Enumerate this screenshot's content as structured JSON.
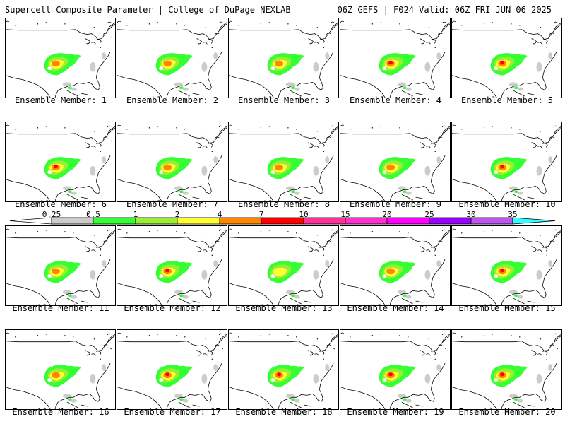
{
  "header": {
    "title": "Supercell Composite Parameter | College of DuPage NEXLAB",
    "valid": "06Z GEFS | F024 Valid: 06Z FRI JUN 06 2025"
  },
  "legend": {
    "ticks": [
      "0.25",
      "0.5",
      "1",
      "2",
      "4",
      "7",
      "10",
      "15",
      "20",
      "25",
      "30",
      "35"
    ],
    "colors": [
      "#cccccc",
      "#33ff33",
      "#99ee33",
      "#ffff33",
      "#ff8800",
      "#ff0000",
      "#ff3399",
      "#ff33cc",
      "#ff00ff",
      "#9900ff",
      "#bb55ee",
      "#33ffff"
    ]
  },
  "panels": [
    {
      "label": "Ensemble Member: 1",
      "max": 4
    },
    {
      "label": "Ensemble Member: 2",
      "max": 4
    },
    {
      "label": "Ensemble Member: 3",
      "max": 4
    },
    {
      "label": "Ensemble Member: 4",
      "max": 7
    },
    {
      "label": "Ensemble Member: 5",
      "max": 7
    },
    {
      "label": "Ensemble Member: 6",
      "max": 7
    },
    {
      "label": "Ensemble Member: 7",
      "max": 4
    },
    {
      "label": "Ensemble Member: 8",
      "max": 4
    },
    {
      "label": "Ensemble Member: 9",
      "max": 4
    },
    {
      "label": "Ensemble Member: 10",
      "max": 7
    },
    {
      "label": "Ensemble Member: 11",
      "max": 4
    },
    {
      "label": "Ensemble Member: 12",
      "max": 7
    },
    {
      "label": "Ensemble Member: 13",
      "max": 2
    },
    {
      "label": "Ensemble Member: 14",
      "max": 4
    },
    {
      "label": "Ensemble Member: 15",
      "max": 7
    },
    {
      "label": "Ensemble Member: 16",
      "max": 4
    },
    {
      "label": "Ensemble Member: 17",
      "max": 7
    },
    {
      "label": "Ensemble Member: 18",
      "max": 7
    },
    {
      "label": "Ensemble Member: 19",
      "max": 7
    },
    {
      "label": "Ensemble Member: 20",
      "max": 7
    }
  ]
}
